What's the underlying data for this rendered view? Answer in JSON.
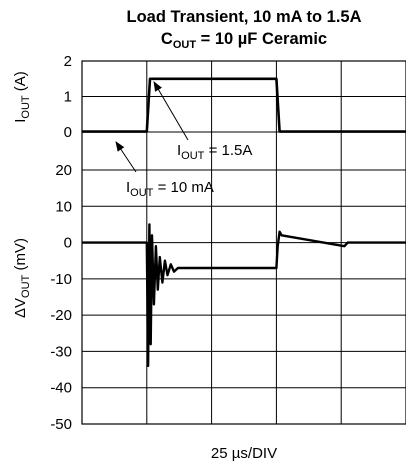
{
  "chart_data": {
    "type": "line",
    "title_line1": "Load Transient, 10 mA to 1.5A",
    "title_line2_main": "C",
    "title_line2_sub": "OUT",
    "title_line2_rest": " = 10 µF Ceramic",
    "xlabel": "25 µs/DIV",
    "x_divisions": 5,
    "grid": true,
    "top_panel": {
      "ylabel_main": "I",
      "ylabel_sub": "OUT",
      "ylabel_unit": " (A)",
      "ylim": [
        0,
        2
      ],
      "yticks": [
        "2",
        "1",
        "0"
      ],
      "annotations": [
        {
          "main": "I",
          "sub": "OUT",
          "rest": " = 1.5A"
        },
        {
          "main": "I",
          "sub": "OUT",
          "rest": " = 10 mA"
        }
      ],
      "series": {
        "x": [
          0,
          1.0,
          1.05,
          3.0,
          3.05,
          5.0
        ],
        "y": [
          0.01,
          0.01,
          1.5,
          1.5,
          0.01,
          0.01
        ]
      }
    },
    "bottom_panel": {
      "ylabel_main": "ΔV",
      "ylabel_sub": "OUT",
      "ylabel_unit": " (mV)",
      "ylim": [
        -50,
        20
      ],
      "yticks": [
        "20",
        "10",
        "0",
        "-10",
        "-20",
        "-30",
        "-40",
        "-50"
      ],
      "series": {
        "x": [
          0,
          1.0,
          1.02,
          1.04,
          1.06,
          1.08,
          1.11,
          1.14,
          1.17,
          1.2,
          1.24,
          1.28,
          1.32,
          1.37,
          1.42,
          1.48,
          1.55,
          3.0,
          3.02,
          3.05,
          3.08,
          4.05,
          4.1,
          5.0
        ],
        "y": [
          0,
          0,
          -34,
          5,
          -28,
          2,
          -17,
          -1,
          -13,
          -4,
          -11,
          -5,
          -9,
          -6,
          -8,
          -7,
          -7,
          -7,
          -1,
          3,
          2,
          -1,
          0,
          0
        ]
      }
    }
  }
}
